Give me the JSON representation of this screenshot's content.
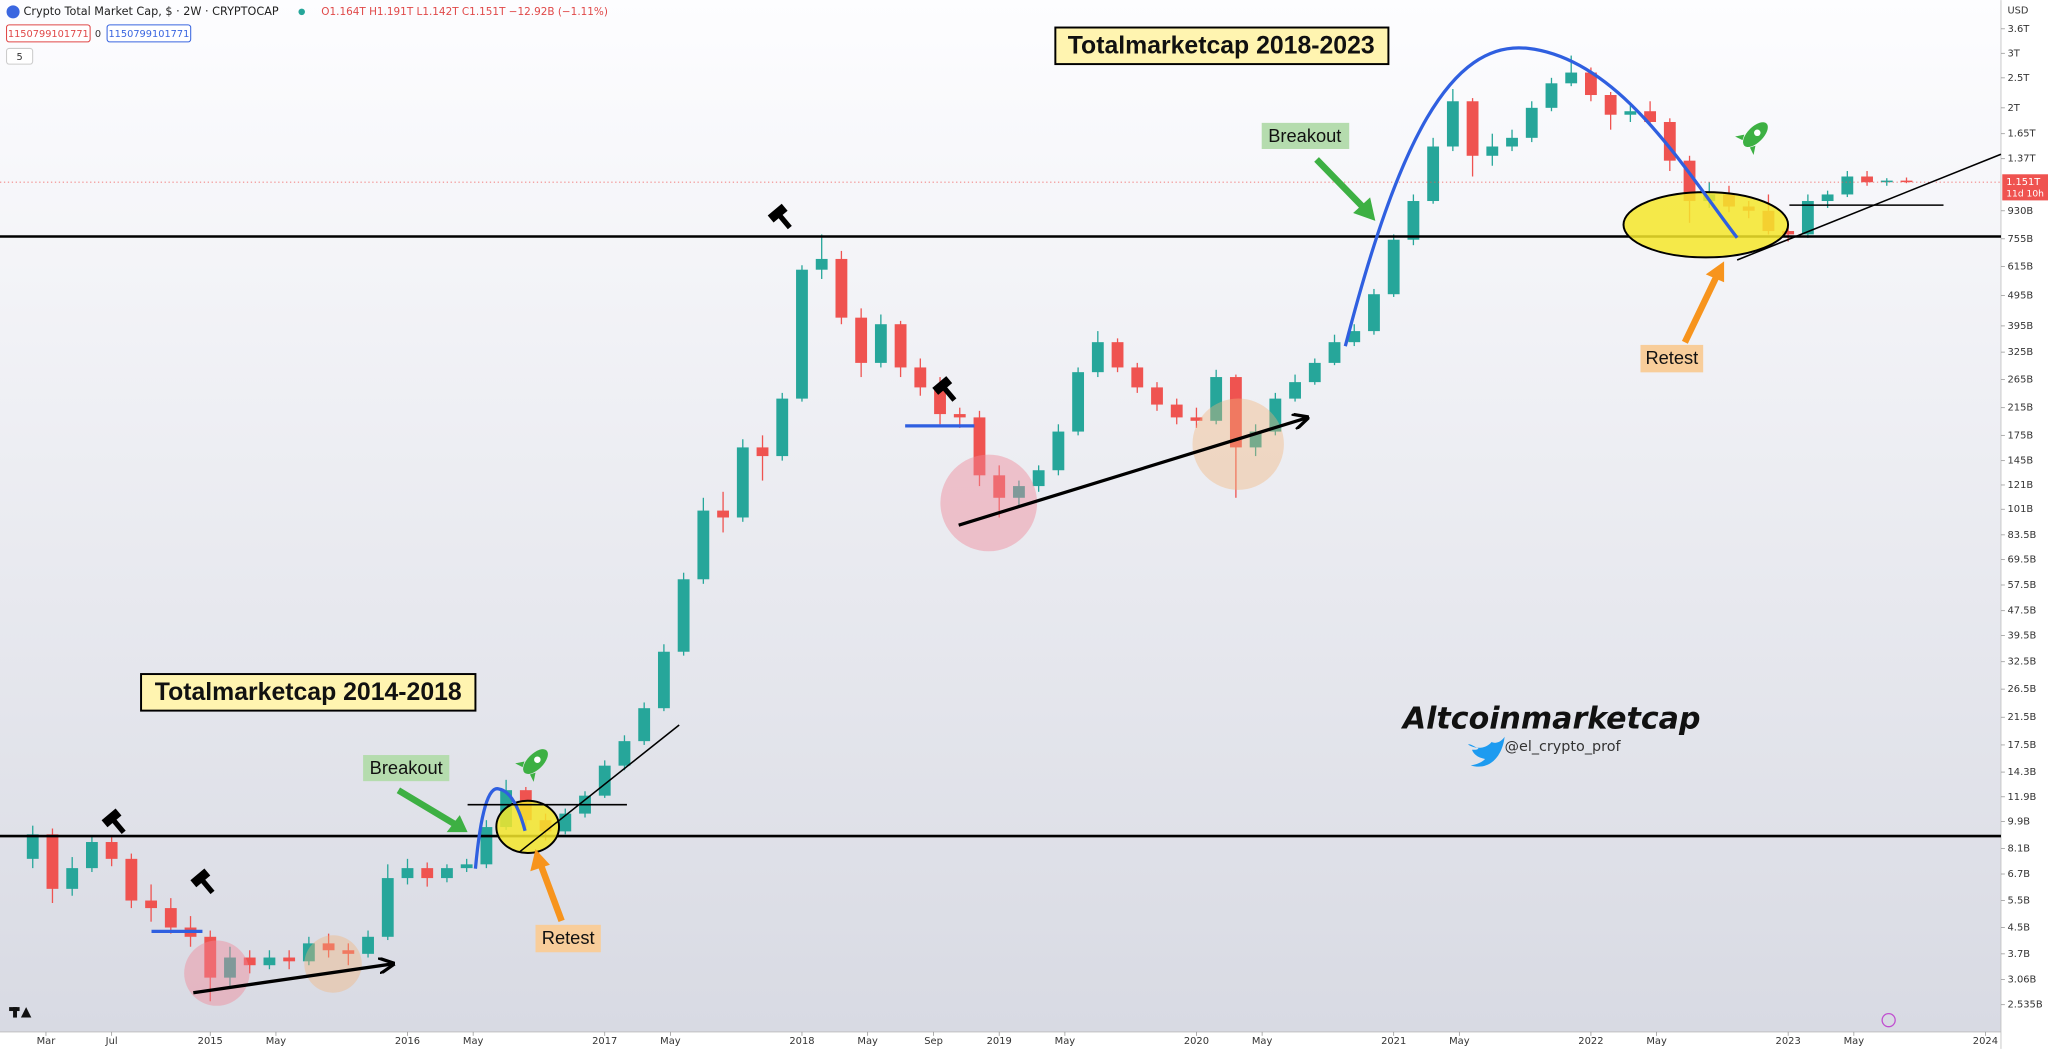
{
  "chart_data": {
    "type": "candlestick",
    "title": "Crypto Total Market Cap, $ · 2W · CRYPTOCAP",
    "ohlc_legend": "O1.164T H1.191T L1.142T C1.151T −12.92B (−1.11%)",
    "currency": "USD",
    "price_label": "1.151T",
    "countdown": "11d 10h",
    "order_inputs": [
      "1150799101771",
      "0",
      "1150799101771",
      "5"
    ],
    "annotations": [
      "Totalmarketcap 2018-2023",
      "Totalmarketcap 2014-2018",
      "Breakout",
      "Breakout",
      "Retest",
      "Retest",
      "Altcoinmarketcap",
      "@el_crypto_prof"
    ],
    "log_scale": true,
    "grid": false,
    "up_color": "#26a69a",
    "down_color": "#ef5350",
    "x": [
      2014.1,
      2014.2,
      2014.3,
      2014.4,
      2014.5,
      2014.6,
      2014.7,
      2014.8,
      2014.9,
      2015.0,
      2015.1,
      2015.2,
      2015.3,
      2015.4,
      2015.5,
      2015.6,
      2015.7,
      2015.8,
      2015.9,
      2016.0,
      2016.1,
      2016.2,
      2016.3,
      2016.4,
      2016.5,
      2016.6,
      2016.7,
      2016.8,
      2016.9,
      2017.0,
      2017.1,
      2017.2,
      2017.3,
      2017.4,
      2017.5,
      2017.6,
      2017.7,
      2017.8,
      2017.9,
      2018.0,
      2018.1,
      2018.2,
      2018.3,
      2018.4,
      2018.5,
      2018.6,
      2018.7,
      2018.8,
      2018.9,
      2019.0,
      2019.1,
      2019.2,
      2019.3,
      2019.4,
      2019.5,
      2019.6,
      2019.7,
      2019.8,
      2019.9,
      2020.0,
      2020.1,
      2020.2,
      2020.3,
      2020.4,
      2020.5,
      2020.6,
      2020.7,
      2020.8,
      2020.9,
      2021.0,
      2021.1,
      2021.2,
      2021.3,
      2021.4,
      2021.5,
      2021.6,
      2021.7,
      2021.8,
      2021.9,
      2022.0,
      2022.1,
      2022.2,
      2022.3,
      2022.4,
      2022.5,
      2022.6,
      2022.7,
      2022.8,
      2022.9,
      2023.0,
      2023.1,
      2023.2,
      2023.3,
      2023.4,
      2023.5,
      2023.6
    ],
    "open": [
      7.5,
      9.0,
      6.0,
      7.0,
      8.5,
      7.5,
      5.5,
      5.2,
      4.5,
      4.2,
      3.1,
      3.6,
      3.4,
      3.6,
      3.5,
      4.0,
      3.8,
      3.7,
      4.2,
      6.5,
      7.0,
      6.5,
      7.0,
      7.2,
      9.5,
      12.5,
      10.0,
      9.2,
      10.5,
      12.0,
      15.0,
      18.0,
      23.0,
      35,
      60,
      100,
      95,
      160,
      150,
      230,
      600,
      650,
      420,
      300,
      400,
      290,
      250,
      205,
      200,
      130,
      110,
      120,
      135,
      180,
      280,
      350,
      290,
      250,
      220,
      200,
      195,
      270,
      160,
      180,
      230,
      260,
      300,
      350,
      380,
      500,
      750,
      1000,
      1500,
      2100,
      1400,
      1500,
      1600,
      2000,
      2400,
      2600,
      2200,
      1900,
      1950,
      1800,
      1350,
      1000,
      1050,
      960,
      930,
      800,
      780,
      1000,
      1050,
      1200,
      1150,
      1164
    ],
    "high": [
      9.6,
      9.4,
      7.6,
      8.9,
      8.8,
      7.8,
      6.2,
      5.6,
      4.9,
      4.4,
      3.9,
      3.8,
      3.8,
      3.8,
      4.2,
      4.3,
      4.0,
      4.4,
      7.2,
      7.5,
      7.3,
      7.2,
      7.5,
      10.0,
      13.5,
      12.8,
      10.5,
      10.9,
      12.4,
      15.6,
      18.8,
      24.0,
      37,
      63,
      110,
      115,
      170,
      175,
      240,
      620,
      780,
      690,
      450,
      430,
      410,
      310,
      270,
      215,
      210,
      140,
      125,
      140,
      190,
      290,
      380,
      360,
      300,
      260,
      230,
      215,
      285,
      275,
      190,
      240,
      275,
      310,
      370,
      400,
      520,
      780,
      1050,
      1600,
      2300,
      2150,
      1650,
      1700,
      2100,
      2500,
      2950,
      2700,
      2250,
      2050,
      2100,
      1850,
      1400,
      1150,
      1120,
      1000,
      1050,
      840,
      1050,
      1080,
      1250,
      1250,
      1185,
      1191
    ],
    "low": [
      7.0,
      5.4,
      5.7,
      6.8,
      7.1,
      5.2,
      4.7,
      4.3,
      3.9,
      2.6,
      2.9,
      3.2,
      3.3,
      3.3,
      3.4,
      3.6,
      3.4,
      3.6,
      4.1,
      6.2,
      6.1,
      6.3,
      6.8,
      7.0,
      9.3,
      9.4,
      8.6,
      9.0,
      10.2,
      11.8,
      14.5,
      17.5,
      22.5,
      34,
      58,
      85,
      92,
      125,
      145,
      225,
      560,
      400,
      270,
      290,
      270,
      235,
      190,
      185,
      120,
      95,
      102,
      115,
      130,
      175,
      270,
      280,
      240,
      210,
      190,
      185,
      190,
      110,
      150,
      175,
      225,
      255,
      295,
      340,
      370,
      490,
      720,
      980,
      1450,
      1200,
      1300,
      1450,
      1550,
      1950,
      2350,
      2100,
      1700,
      1800,
      1750,
      1250,
      850,
      950,
      920,
      880,
      780,
      740,
      760,
      950,
      1030,
      1120,
      1120,
      1142
    ],
    "close": [
      9.0,
      6.0,
      7.0,
      8.5,
      7.5,
      5.5,
      5.2,
      4.5,
      4.2,
      3.1,
      3.6,
      3.4,
      3.6,
      3.5,
      4.0,
      3.8,
      3.7,
      4.2,
      6.5,
      7.0,
      6.5,
      7.0,
      7.2,
      9.5,
      12.5,
      10.0,
      9.2,
      10.5,
      12.0,
      15.0,
      18.0,
      23.0,
      35,
      60,
      100,
      95,
      160,
      150,
      230,
      600,
      650,
      420,
      300,
      400,
      290,
      250,
      205,
      200,
      130,
      110,
      120,
      135,
      180,
      280,
      350,
      290,
      250,
      220,
      200,
      195,
      270,
      160,
      180,
      230,
      260,
      300,
      350,
      380,
      500,
      750,
      1000,
      1500,
      2100,
      1400,
      1500,
      1600,
      2000,
      2400,
      2600,
      2200,
      1900,
      1950,
      1800,
      1350,
      1000,
      1050,
      960,
      930,
      800,
      780,
      1000,
      1050,
      1200,
      1150,
      1164,
      1151
    ],
    "xlim": [
      2013.934,
      2024.079
    ],
    "xticks": [
      {
        "value": 2014.167,
        "label": "Mar"
      },
      {
        "value": 2014.5,
        "label": "Jul"
      },
      2015,
      {
        "value": 2015.333,
        "label": "May"
      },
      2016,
      {
        "value": 2016.333,
        "label": "May"
      },
      2017,
      {
        "value": 2017.333,
        "label": "May"
      },
      2018,
      {
        "value": 2018.333,
        "label": "May"
      },
      {
        "value": 2018.667,
        "label": "Sep"
      },
      2019,
      {
        "value": 2019.333,
        "label": "May"
      },
      2020,
      {
        "value": 2020.333,
        "label": "May"
      },
      2021,
      {
        "value": 2021.333,
        "label": "May"
      },
      2022,
      {
        "value": 2022.333,
        "label": "May"
      },
      2023,
      {
        "value": 2023.333,
        "label": "May"
      },
      2024
    ],
    "ylim": [
      2.07,
      4457
    ],
    "yticks": [
      {
        "value": 3600,
        "label": "3.6T"
      },
      {
        "value": 3000,
        "label": "3T"
      },
      {
        "value": 2500,
        "label": "2.5T"
      },
      {
        "value": 2000,
        "label": "2T"
      },
      {
        "value": 1650,
        "label": "1.65T"
      },
      {
        "value": 1370,
        "label": "1.37T"
      },
      {
        "value": 930,
        "label": "930B"
      },
      {
        "value": 755,
        "label": "755B"
      },
      {
        "value": 615,
        "label": "615B"
      },
      {
        "value": 495,
        "label": "495B"
      },
      {
        "value": 395,
        "label": "395B"
      },
      {
        "value": 325,
        "label": "325B"
      },
      {
        "value": 265,
        "label": "265B"
      },
      {
        "value": 215,
        "label": "215B"
      },
      {
        "value": 175,
        "label": "175B"
      },
      {
        "value": 145,
        "label": "145B"
      },
      {
        "value": 121,
        "label": "121B"
      },
      {
        "value": 101,
        "label": "101B"
      },
      {
        "value": 83.5,
        "label": "83.5B"
      },
      {
        "value": 69.5,
        "label": "69.5B"
      },
      {
        "value": 57.5,
        "label": "57.5B"
      },
      {
        "value": 47.5,
        "label": "47.5B"
      },
      {
        "value": 39.5,
        "label": "39.5B"
      },
      {
        "value": 32.5,
        "label": "32.5B"
      },
      {
        "value": 26.5,
        "label": "26.5B"
      },
      {
        "value": 21.5,
        "label": "21.5B"
      },
      {
        "value": 17.5,
        "label": "17.5B"
      },
      {
        "value": 14.3,
        "label": "14.3B"
      },
      {
        "value": 11.9,
        "label": "11.9B"
      },
      {
        "value": 9.9,
        "label": "9.9B"
      },
      {
        "value": 8.1,
        "label": "8.1B"
      },
      {
        "value": 6.7,
        "label": "6.7B"
      },
      {
        "value": 5.5,
        "label": "5.5B"
      },
      {
        "value": 4.5,
        "label": "4.5B"
      },
      {
        "value": 3.7,
        "label": "3.7B"
      },
      {
        "value": 3.06,
        "label": "3.06B"
      },
      {
        "value": 2.535,
        "label": "2.535B"
      }
    ]
  }
}
